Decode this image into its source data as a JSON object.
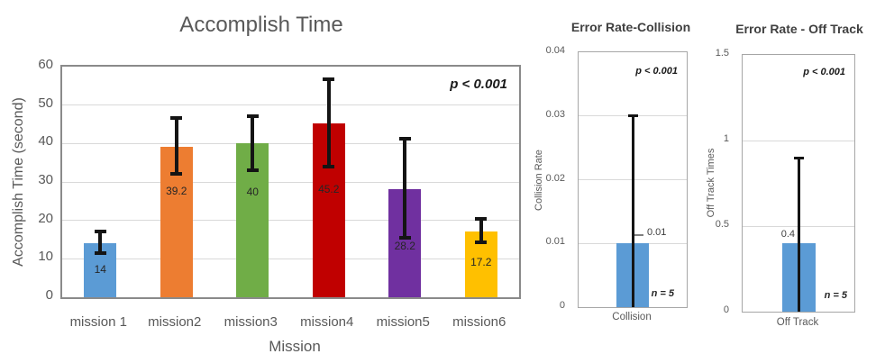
{
  "figure": {
    "background": "#FFFFFF",
    "error_bar_color": "#141414"
  },
  "chart_data": [
    {
      "type": "bar",
      "title": "Accomplish Time",
      "xlabel": "Mission",
      "ylabel": "Accomplish Time (second)",
      "ylim": [
        0,
        60
      ],
      "yticks": [
        "0",
        "10",
        "20",
        "30",
        "40",
        "50",
        "60"
      ],
      "categories": [
        "mission 1",
        "mission2",
        "mission3",
        "mission4",
        "mission5",
        "mission6"
      ],
      "values": [
        14,
        39.2,
        40,
        45.2,
        28.2,
        17.2
      ],
      "data_labels": [
        "14",
        "39.2",
        "40",
        "45.2",
        "28.2",
        "17.2"
      ],
      "label_pos_y": [
        7,
        27.5,
        27.2,
        27.8,
        13.2,
        9
      ],
      "bar_colors": [
        "#5B9BD5",
        "#ED7D31",
        "#70AD47",
        "#C00000",
        "#7030A0",
        "#FFC000"
      ],
      "error_low": [
        11.4,
        32,
        33,
        34,
        15.5,
        14.3
      ],
      "error_high": [
        17,
        46.6,
        47,
        56.8,
        41.2,
        20.5
      ],
      "annotation": "p < 0.001",
      "grid": true,
      "legend": false
    },
    {
      "type": "bar",
      "title": "Error Rate-Collision",
      "xlabel": "",
      "ylabel": "Collision Rate",
      "ylim": [
        0,
        0.04
      ],
      "yticks": [
        "0",
        "0.01",
        "0.02",
        "0.03",
        "0.04"
      ],
      "categories": [
        "Collision"
      ],
      "values": [
        0.01
      ],
      "data_labels": [
        "0.01"
      ],
      "bar_colors": [
        "#5B9BD5"
      ],
      "error_low": [
        0
      ],
      "error_high": [
        0.03
      ],
      "annotation": "p < 0.001",
      "sample_note": "n = 5",
      "grid": true,
      "legend": false
    },
    {
      "type": "bar",
      "title": "Error Rate - Off Track",
      "xlabel": "",
      "ylabel": "Off Track Times",
      "ylim": [
        0,
        1.5
      ],
      "yticks": [
        "0",
        "0.5",
        "1",
        "1.5"
      ],
      "categories": [
        "Off Track"
      ],
      "values": [
        0.4
      ],
      "data_labels": [
        "0.4"
      ],
      "bar_colors": [
        "#5B9BD5"
      ],
      "error_low": [
        0
      ],
      "error_high": [
        0.9
      ],
      "annotation": "p < 0.001",
      "sample_note": "n = 5",
      "grid": true,
      "legend": false
    }
  ]
}
